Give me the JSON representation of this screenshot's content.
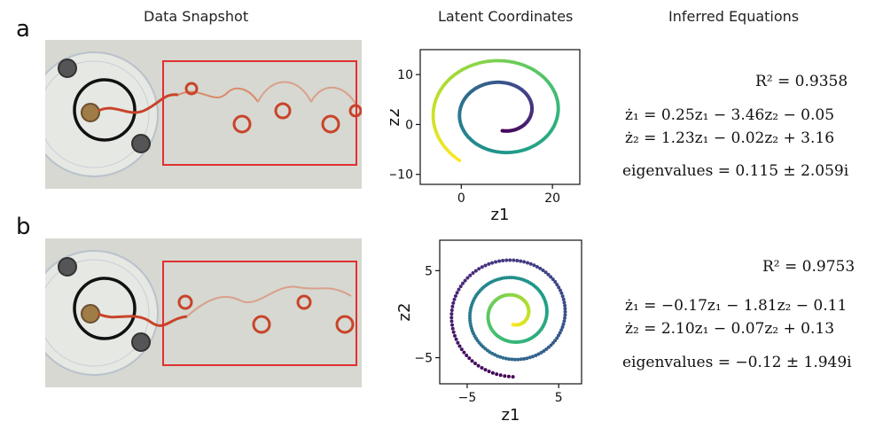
{
  "headers": {
    "col1": "Data Snapshot",
    "col2": "Latent Coordinates",
    "col3": "Inferred Equations"
  },
  "panels": [
    {
      "letter": "a",
      "r2": "R² = 0.9358",
      "eq1": "ż₁ = 0.25z₁ − 3.46z₂ − 0.05",
      "eq2": "ż₂ = 1.23z₁ − 0.02z₂ + 3.16",
      "eig": "eigenvalues = 0.115 ± 2.059i"
    },
    {
      "letter": "b",
      "r2": "R² = 0.9753",
      "eq1": "ż₁ = −0.17z₁ − 1.81z₂ − 0.11",
      "eq2": "ż₂ = 2.10z₁ − 0.07z₂ + 0.13",
      "eig": "eigenvalues = −0.12 ± 1.949i"
    }
  ],
  "colors": {
    "frame": "#e03030",
    "ring": "#111111",
    "dye": "#c8442a"
  },
  "chart_data": [
    {
      "type": "scatter",
      "title": "",
      "xlabel": "z1",
      "ylabel": "z2",
      "xlim": [
        -9,
        26
      ],
      "ylim": [
        -12,
        15
      ],
      "xticks": [
        0,
        20
      ],
      "yticks": [
        10,
        0,
        -10
      ],
      "xtick_labels": [
        "0",
        "20"
      ],
      "ytick_labels": [
        "10",
        "0",
        "−10"
      ],
      "colormap": "viridis",
      "spiral": {
        "center": [
          9,
          2.5
        ],
        "r_start": 5,
        "r_end": 16,
        "turns": 1.9,
        "direction": "outward",
        "aspect": [
          1.0,
          0.75
        ]
      }
    },
    {
      "type": "scatter",
      "title": "",
      "xlabel": "z1",
      "ylabel": "z2",
      "xlim": [
        -8,
        7.5
      ],
      "ylim": [
        -8,
        8.5
      ],
      "xticks": [
        -5,
        5
      ],
      "yticks": [
        5,
        -5
      ],
      "xtick_labels": [
        "−5",
        "5"
      ],
      "ytick_labels": [
        "5",
        "−5"
      ],
      "colormap": "viridis_r",
      "spiral": {
        "center": [
          0,
          0
        ],
        "r_start": 1.2,
        "r_end": 7.2,
        "turns": 3.0,
        "direction": "outward",
        "aspect": [
          1.0,
          1.0
        ]
      }
    }
  ]
}
